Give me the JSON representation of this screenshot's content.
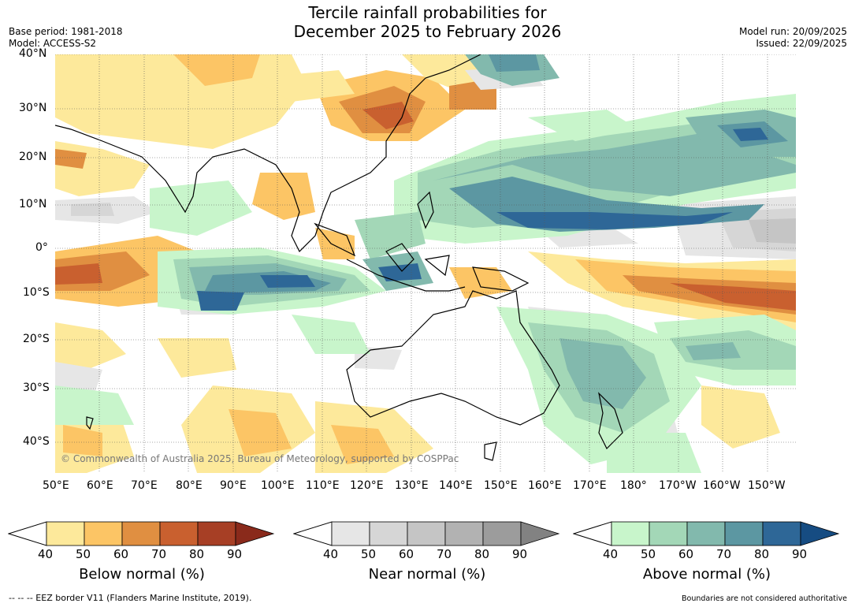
{
  "title_line1": "Tercile rainfall probabilities for",
  "title_line2": "December 2025 to February 2026",
  "base_period": "Base period: 1981-2018",
  "model": "Model: ACCESS-S2",
  "model_run": "Model run: 20/09/2025",
  "issued": "Issued: 22/09/2025",
  "lat_labels": [
    "40°N",
    "30°N",
    "20°N",
    "10°N",
    "0°",
    "10°S",
    "20°S",
    "30°S",
    "40°S"
  ],
  "lon_labels": [
    "50°E",
    "60°E",
    "70°E",
    "80°E",
    "90°E",
    "100°E",
    "110°E",
    "120°E",
    "130°E",
    "140°E",
    "150°E",
    "160°E",
    "170°E",
    "180°",
    "170°W",
    "160°W",
    "150°W"
  ],
  "copyright": "© Commonwealth of Australia 2025, Bureau of Meteorology, supported by COSPPac",
  "colorbars": [
    {
      "name": "below",
      "label": "Below normal (%)",
      "ticks": [
        "40",
        "50",
        "60",
        "70",
        "80",
        "90"
      ],
      "colors": [
        "#fde99b",
        "#fcc565",
        "#e08f41",
        "#c9602f",
        "#a73f25",
        "#8a2a1b"
      ]
    },
    {
      "name": "near",
      "label": "Near normal (%)",
      "ticks": [
        "40",
        "50",
        "60",
        "70",
        "80",
        "90"
      ],
      "colors": [
        "#e6e6e6",
        "#d6d6d6",
        "#c5c5c5",
        "#b2b2b2",
        "#9c9c9c",
        "#828282"
      ]
    },
    {
      "name": "above",
      "label": "Above normal (%)",
      "ticks": [
        "40",
        "50",
        "60",
        "70",
        "80",
        "90"
      ],
      "colors": [
        "#c8f5cb",
        "#a3d7b7",
        "#82b9ad",
        "#5c97a2",
        "#2e6797",
        "#164c82"
      ]
    }
  ],
  "footer_left": "--  --  -- EEZ border V11 (Flanders Marine Institute, 2019).",
  "footer_right": "Boundaries are not considered authoritative"
}
